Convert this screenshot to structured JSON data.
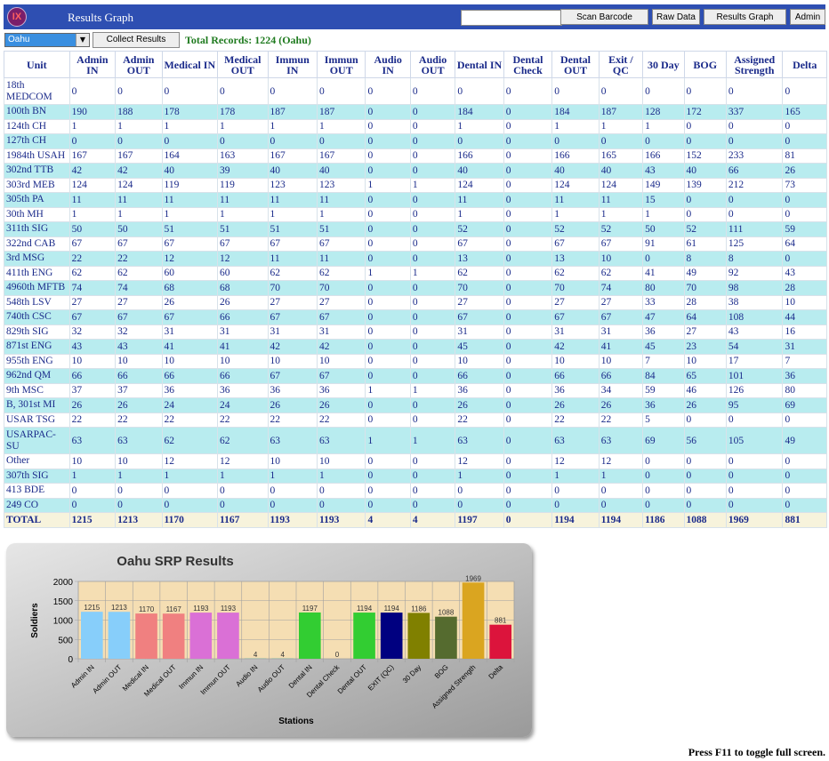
{
  "app": {
    "logo_text": "IX",
    "title": "Results Graph",
    "buttons": {
      "scan_barcode": "Scan Barcode",
      "raw_data": "Raw Data",
      "results_graph": "Results Graph",
      "admin": "Admin"
    },
    "search_value": ""
  },
  "toolbar": {
    "location_selected": "Oahu",
    "collect_label": "Collect Results",
    "total_records": "Total Records: 1224 (Oahu)"
  },
  "table": {
    "headers": [
      "Unit",
      "Admin IN",
      "Admin OUT",
      "Medical IN",
      "Medical OUT",
      "Immun IN",
      "Immun OUT",
      "Audio IN",
      "Audio OUT",
      "Dental IN",
      "Dental Check",
      "Dental OUT",
      "Exit / QC",
      "30 Day",
      "BOG",
      "Assigned Strength",
      "Delta"
    ],
    "rows": [
      [
        "18th MEDCOM",
        "0",
        "0",
        "0",
        "0",
        "0",
        "0",
        "0",
        "0",
        "0",
        "0",
        "0",
        "0",
        "0",
        "0",
        "0",
        "0"
      ],
      [
        "100th BN",
        "190",
        "188",
        "178",
        "178",
        "187",
        "187",
        "0",
        "0",
        "184",
        "0",
        "184",
        "187",
        "128",
        "172",
        "337",
        "165"
      ],
      [
        "124th CH",
        "1",
        "1",
        "1",
        "1",
        "1",
        "1",
        "0",
        "0",
        "1",
        "0",
        "1",
        "1",
        "1",
        "0",
        "0",
        "0"
      ],
      [
        "127th CH",
        "0",
        "0",
        "0",
        "0",
        "0",
        "0",
        "0",
        "0",
        "0",
        "0",
        "0",
        "0",
        "0",
        "0",
        "0",
        "0"
      ],
      [
        "1984th USAH",
        "167",
        "167",
        "164",
        "163",
        "167",
        "167",
        "0",
        "0",
        "166",
        "0",
        "166",
        "165",
        "166",
        "152",
        "233",
        "81"
      ],
      [
        "302nd TTB",
        "42",
        "42",
        "40",
        "39",
        "40",
        "40",
        "0",
        "0",
        "40",
        "0",
        "40",
        "40",
        "43",
        "40",
        "66",
        "26"
      ],
      [
        "303rd MEB",
        "124",
        "124",
        "119",
        "119",
        "123",
        "123",
        "1",
        "1",
        "124",
        "0",
        "124",
        "124",
        "149",
        "139",
        "212",
        "73"
      ],
      [
        "305th PA",
        "11",
        "11",
        "11",
        "11",
        "11",
        "11",
        "0",
        "0",
        "11",
        "0",
        "11",
        "11",
        "15",
        "0",
        "0",
        "0"
      ],
      [
        "30th MH",
        "1",
        "1",
        "1",
        "1",
        "1",
        "1",
        "0",
        "0",
        "1",
        "0",
        "1",
        "1",
        "1",
        "0",
        "0",
        "0"
      ],
      [
        "311th SIG",
        "50",
        "50",
        "51",
        "51",
        "51",
        "51",
        "0",
        "0",
        "52",
        "0",
        "52",
        "52",
        "50",
        "52",
        "111",
        "59"
      ],
      [
        "322nd CAB",
        "67",
        "67",
        "67",
        "67",
        "67",
        "67",
        "0",
        "0",
        "67",
        "0",
        "67",
        "67",
        "91",
        "61",
        "125",
        "64"
      ],
      [
        "3rd MSG",
        "22",
        "22",
        "12",
        "12",
        "11",
        "11",
        "0",
        "0",
        "13",
        "0",
        "13",
        "10",
        "0",
        "8",
        "8",
        "0"
      ],
      [
        "411th ENG",
        "62",
        "62",
        "60",
        "60",
        "62",
        "62",
        "1",
        "1",
        "62",
        "0",
        "62",
        "62",
        "41",
        "49",
        "92",
        "43"
      ],
      [
        "4960th MFTB",
        "74",
        "74",
        "68",
        "68",
        "70",
        "70",
        "0",
        "0",
        "70",
        "0",
        "70",
        "74",
        "80",
        "70",
        "98",
        "28"
      ],
      [
        "548th LSV",
        "27",
        "27",
        "26",
        "26",
        "27",
        "27",
        "0",
        "0",
        "27",
        "0",
        "27",
        "27",
        "33",
        "28",
        "38",
        "10"
      ],
      [
        "740th CSC",
        "67",
        "67",
        "67",
        "66",
        "67",
        "67",
        "0",
        "0",
        "67",
        "0",
        "67",
        "67",
        "47",
        "64",
        "108",
        "44"
      ],
      [
        "829th SIG",
        "32",
        "32",
        "31",
        "31",
        "31",
        "31",
        "0",
        "0",
        "31",
        "0",
        "31",
        "31",
        "36",
        "27",
        "43",
        "16"
      ],
      [
        "871st ENG",
        "43",
        "43",
        "41",
        "41",
        "42",
        "42",
        "0",
        "0",
        "45",
        "0",
        "42",
        "41",
        "45",
        "23",
        "54",
        "31"
      ],
      [
        "955th ENG",
        "10",
        "10",
        "10",
        "10",
        "10",
        "10",
        "0",
        "0",
        "10",
        "0",
        "10",
        "10",
        "7",
        "10",
        "17",
        "7"
      ],
      [
        "962nd QM",
        "66",
        "66",
        "66",
        "66",
        "67",
        "67",
        "0",
        "0",
        "66",
        "0",
        "66",
        "66",
        "84",
        "65",
        "101",
        "36"
      ],
      [
        "9th MSC",
        "37",
        "37",
        "36",
        "36",
        "36",
        "36",
        "1",
        "1",
        "36",
        "0",
        "36",
        "34",
        "59",
        "46",
        "126",
        "80"
      ],
      [
        "B, 301st MI",
        "26",
        "26",
        "24",
        "24",
        "26",
        "26",
        "0",
        "0",
        "26",
        "0",
        "26",
        "26",
        "36",
        "26",
        "95",
        "69"
      ],
      [
        "USAR TSG",
        "22",
        "22",
        "22",
        "22",
        "22",
        "22",
        "0",
        "0",
        "22",
        "0",
        "22",
        "22",
        "5",
        "0",
        "0",
        "0"
      ],
      [
        "USARPAC-SU",
        "63",
        "63",
        "62",
        "62",
        "63",
        "63",
        "1",
        "1",
        "63",
        "0",
        "63",
        "63",
        "69",
        "56",
        "105",
        "49"
      ],
      [
        "Other",
        "10",
        "10",
        "12",
        "12",
        "10",
        "10",
        "0",
        "0",
        "12",
        "0",
        "12",
        "12",
        "0",
        "0",
        "0",
        "0"
      ],
      [
        "307th SIG",
        "1",
        "1",
        "1",
        "1",
        "1",
        "1",
        "0",
        "0",
        "1",
        "0",
        "1",
        "1",
        "0",
        "0",
        "0",
        "0"
      ],
      [
        "413 BDE",
        "0",
        "0",
        "0",
        "0",
        "0",
        "0",
        "0",
        "0",
        "0",
        "0",
        "0",
        "0",
        "0",
        "0",
        "0",
        "0"
      ],
      [
        "249 CO",
        "0",
        "0",
        "0",
        "0",
        "0",
        "0",
        "0",
        "0",
        "0",
        "0",
        "0",
        "0",
        "0",
        "0",
        "0",
        "0"
      ]
    ],
    "total": [
      "TOTAL",
      "1215",
      "1213",
      "1170",
      "1167",
      "1193",
      "1193",
      "4",
      "4",
      "1197",
      "0",
      "1194",
      "1194",
      "1186",
      "1088",
      "1969",
      "881"
    ]
  },
  "chart_data": {
    "type": "bar",
    "title": "Oahu SRP Results",
    "xlabel": "Stations",
    "ylabel": "Soldiers",
    "ylim": [
      0,
      2000
    ],
    "yticks": [
      0,
      500,
      1000,
      1500,
      2000
    ],
    "grid": true,
    "categories": [
      "Admin IN",
      "Admin OUT",
      "Medical IN",
      "Medical OUT",
      "Immun IN",
      "Immun OUT",
      "Audio IN",
      "Audio OUT",
      "Dental IN",
      "Dental Check",
      "Dental OUT",
      "EXIT (QC)",
      "30 Day",
      "BOG",
      "Assigned Strength",
      "Delta"
    ],
    "values": [
      1215,
      1213,
      1170,
      1167,
      1193,
      1193,
      4,
      4,
      1197,
      0,
      1194,
      1194,
      1186,
      1088,
      1969,
      881
    ],
    "colors": [
      "#87cefa",
      "#87cefa",
      "#f08080",
      "#f08080",
      "#da70d6",
      "#da70d6",
      "#20b2aa",
      "#20b2aa",
      "#32cd32",
      "#32cd32",
      "#32cd32",
      "#000080",
      "#808000",
      "#556b2f",
      "#daa520",
      "#dc143c"
    ],
    "plot_background": "#f5deb3"
  },
  "footer": {
    "hint": "Press F11 to toggle full screen."
  }
}
